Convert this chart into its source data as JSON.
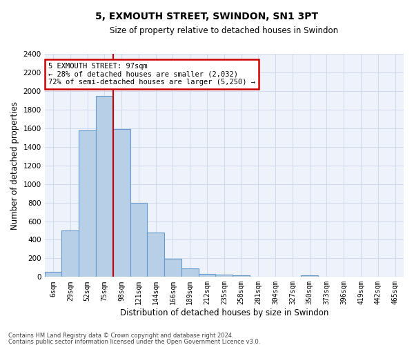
{
  "title": "5, EXMOUTH STREET, SWINDON, SN1 3PT",
  "subtitle": "Size of property relative to detached houses in Swindon",
  "xlabel": "Distribution of detached houses by size in Swindon",
  "ylabel": "Number of detached properties",
  "categories": [
    "6sqm",
    "29sqm",
    "52sqm",
    "75sqm",
    "98sqm",
    "121sqm",
    "144sqm",
    "166sqm",
    "189sqm",
    "212sqm",
    "235sqm",
    "258sqm",
    "281sqm",
    "304sqm",
    "327sqm",
    "350sqm",
    "373sqm",
    "396sqm",
    "419sqm",
    "442sqm",
    "465sqm"
  ],
  "values": [
    55,
    500,
    1580,
    1950,
    1590,
    800,
    480,
    195,
    90,
    35,
    25,
    20,
    5,
    5,
    0,
    20,
    0,
    0,
    0,
    0,
    0
  ],
  "bar_color": "#b8cfe8",
  "bar_edge_color": "#6699cc",
  "grid_color": "#d0daea",
  "background_color": "#eef2fa",
  "annotation_text": "5 EXMOUTH STREET: 97sqm\n← 28% of detached houses are smaller (2,032)\n72% of semi-detached houses are larger (5,250) →",
  "annotation_box_color": "#ffffff",
  "annotation_box_edge_color": "#cc0000",
  "marker_bin_index": 4,
  "ylim": [
    0,
    2400
  ],
  "yticks": [
    0,
    200,
    400,
    600,
    800,
    1000,
    1200,
    1400,
    1600,
    1800,
    2000,
    2200,
    2400
  ],
  "footer_line1": "Contains HM Land Registry data © Crown copyright and database right 2024.",
  "footer_line2": "Contains public sector information licensed under the Open Government Licence v3.0.",
  "fig_width": 6.0,
  "fig_height": 5.0,
  "dpi": 100
}
